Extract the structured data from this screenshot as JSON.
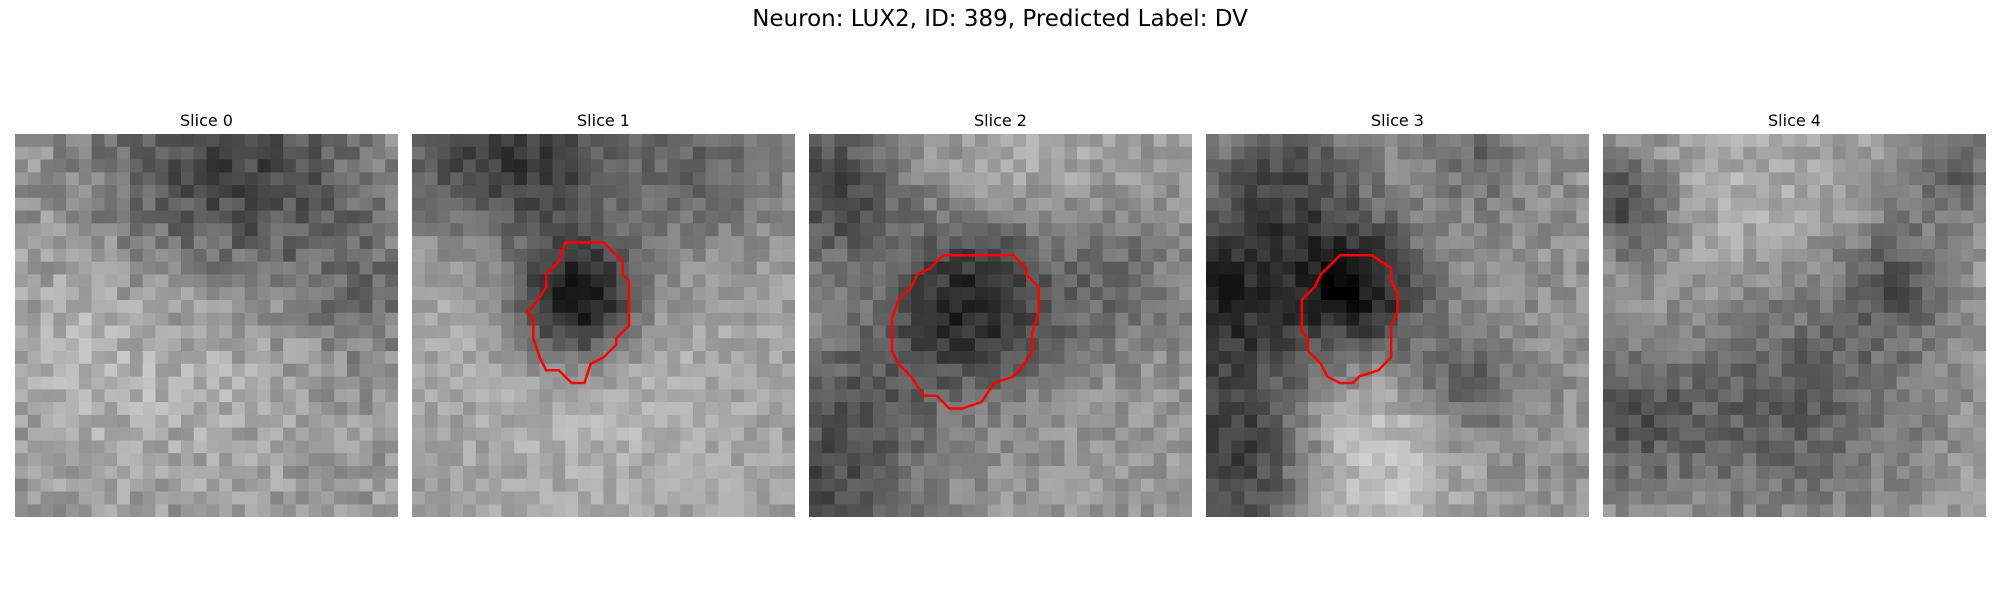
{
  "figure": {
    "title": "Neuron: LUX2, ID: 389, Predicted Label: DV"
  },
  "slices": [
    {
      "label": "Slice 0",
      "contour": false,
      "colors": {
        "image": "grayscale"
      }
    },
    {
      "label": "Slice 1",
      "contour": true,
      "colors": {
        "contour": "#ff0000"
      }
    },
    {
      "label": "Slice 2",
      "contour": true,
      "colors": {
        "contour": "#ff0000"
      }
    },
    {
      "label": "Slice 3",
      "contour": true,
      "colors": {
        "contour": "#ff0000"
      }
    },
    {
      "label": "Slice 4",
      "contour": false
    }
  ]
}
